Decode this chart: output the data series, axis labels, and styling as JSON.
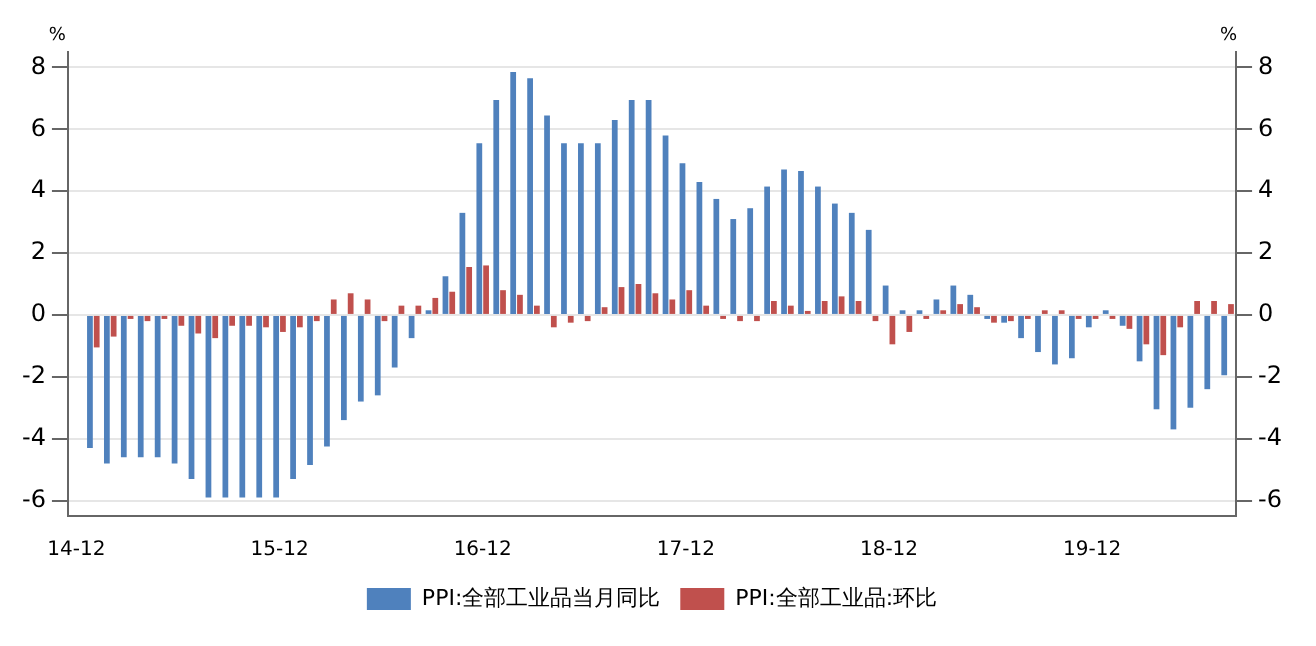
{
  "chart_data": {
    "type": "bar",
    "ylabel": "%",
    "y2label": "%",
    "categories": [
      "14-12",
      null,
      null,
      null,
      null,
      null,
      null,
      null,
      null,
      null,
      null,
      null,
      "15-12",
      null,
      null,
      null,
      null,
      null,
      null,
      null,
      null,
      null,
      null,
      null,
      "16-12",
      null,
      null,
      null,
      null,
      null,
      null,
      null,
      null,
      null,
      null,
      null,
      "17-12",
      null,
      null,
      null,
      null,
      null,
      null,
      null,
      null,
      null,
      null,
      null,
      "18-12",
      null,
      null,
      null,
      null,
      null,
      null,
      null,
      null,
      null,
      null,
      null,
      "19-12",
      null,
      null,
      null,
      null,
      null,
      null,
      null,
      null
    ],
    "series": [
      {
        "name": "PPI:全部工业品当月同比",
        "color": "#4f81bd",
        "values": [
          null,
          -4.3,
          -4.8,
          -4.6,
          -4.6,
          -4.6,
          -4.8,
          -5.3,
          -5.9,
          -5.9,
          -5.9,
          -5.9,
          -5.9,
          -5.3,
          -4.85,
          -4.25,
          -3.4,
          -2.8,
          -2.6,
          -1.7,
          -0.75,
          0.15,
          1.25,
          3.3,
          5.55,
          6.95,
          7.85,
          7.65,
          6.45,
          5.55,
          5.55,
          5.55,
          6.3,
          6.95,
          6.95,
          5.8,
          4.9,
          4.3,
          3.75,
          3.1,
          3.45,
          4.15,
          4.7,
          4.65,
          4.15,
          3.6,
          3.3,
          2.75,
          0.95,
          0.15,
          0.15,
          0.5,
          0.95,
          0.65,
          -0.05,
          -0.25,
          -0.75,
          -1.2,
          -1.6,
          -1.4,
          -0.4,
          0.15,
          -0.35,
          -1.5,
          -3.05,
          -3.7,
          -3.0,
          -2.4,
          -1.95
        ]
      },
      {
        "name": "PPI:全部工业品:环比",
        "color": "#c0504d",
        "values": [
          null,
          -1.05,
          -0.7,
          -0.05,
          -0.2,
          -0.05,
          -0.35,
          -0.6,
          -0.75,
          -0.35,
          -0.35,
          -0.4,
          -0.55,
          -0.4,
          -0.2,
          0.5,
          0.7,
          0.5,
          -0.2,
          0.3,
          0.3,
          0.55,
          0.75,
          1.55,
          1.6,
          0.8,
          0.65,
          0.3,
          -0.4,
          -0.25,
          -0.2,
          0.25,
          0.9,
          1.0,
          0.7,
          0.5,
          0.8,
          0.3,
          -0.05,
          -0.2,
          -0.2,
          0.45,
          0.3,
          0.1,
          0.45,
          0.6,
          0.45,
          -0.2,
          -0.95,
          -0.55,
          -0.05,
          0.15,
          0.35,
          0.25,
          -0.25,
          -0.2,
          -0.05,
          0.15,
          0.15,
          -0.05,
          -0.05,
          -0.05,
          -0.45,
          -0.95,
          -1.3,
          -0.4,
          0.45,
          0.45,
          0.35
        ]
      }
    ],
    "ylim": [
      -6.5,
      8.5
    ],
    "yticks": [
      -6,
      -4,
      -2,
      0,
      2,
      4,
      6,
      8
    ],
    "y2lim": [
      -6.5,
      8.5
    ],
    "y2ticks": [
      -6,
      -4,
      -2,
      0,
      2,
      4,
      6,
      8
    ],
    "grid": "y",
    "legend": "bottom"
  }
}
